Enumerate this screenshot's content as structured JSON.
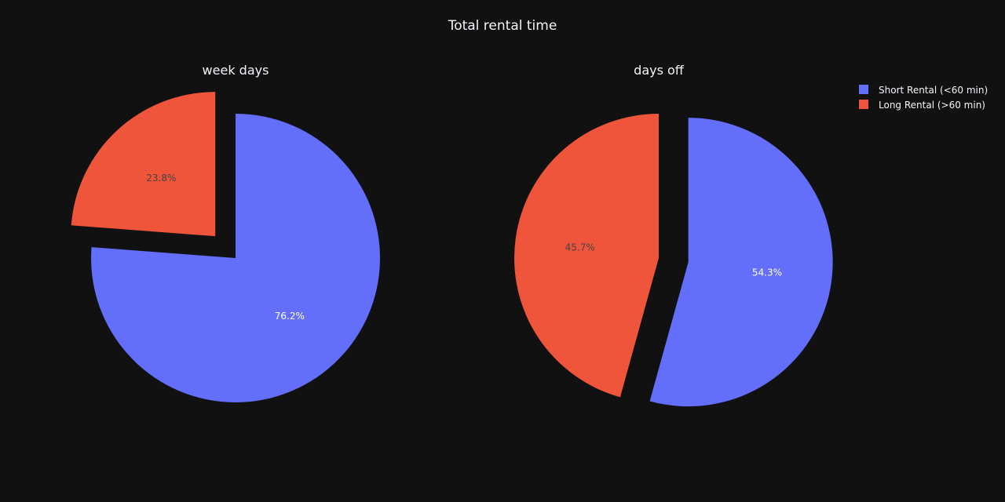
{
  "chart_data": {
    "type": "pie",
    "title": "Total rental time",
    "background": "#111111",
    "text_color": "#f2f5fa",
    "legend": {
      "placement": "top-right",
      "entries": [
        {
          "label": "Short Rental (<60 min)",
          "color": "#636efa"
        },
        {
          "label": "Long Rental (>60 min)",
          "color": "#ef553b"
        }
      ]
    },
    "subplots": [
      {
        "title": "week days",
        "slices": [
          {
            "label": "Short Rental (<60 min)",
            "value": 76.2,
            "text": "76.2%",
            "color": "#636efa",
            "pulled": false,
            "text_color": "#ffffff"
          },
          {
            "label": "Long Rental (>60 min)",
            "value": 23.8,
            "text": "23.8%",
            "color": "#ef553b",
            "pulled": true,
            "text_color": "#444444"
          }
        ]
      },
      {
        "title": "days off",
        "slices": [
          {
            "label": "Short Rental (<60 min)",
            "value": 54.3,
            "text": "54.3%",
            "color": "#636efa",
            "pulled": true,
            "text_color": "#ffffff"
          },
          {
            "label": "Long Rental (>60 min)",
            "value": 45.7,
            "text": "45.7%",
            "color": "#ef553b",
            "pulled": false,
            "text_color": "#444444"
          }
        ]
      }
    ]
  }
}
